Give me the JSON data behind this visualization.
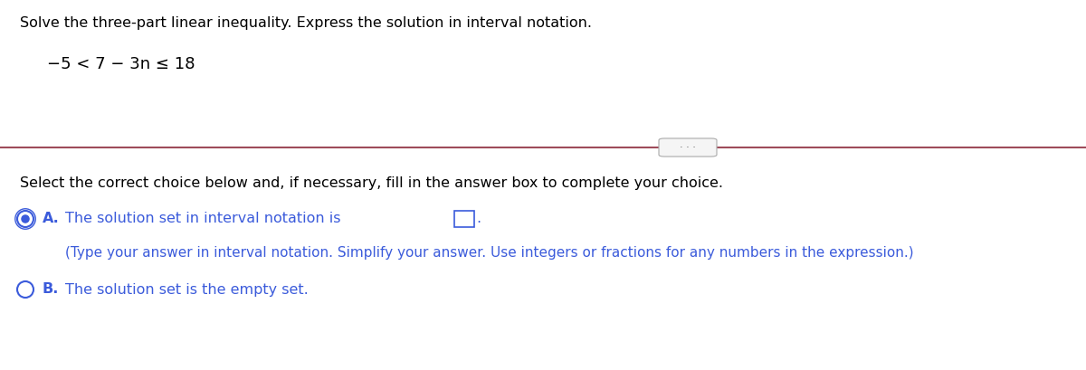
{
  "bg_color": "#ffffff",
  "title_text": "Solve the three-part linear inequality. Express the solution in interval notation.",
  "title_fontsize": 11.5,
  "title_color": "#000000",
  "inequality_text": "−5 < 7 − 3n ≤ 18",
  "inequality_fontsize": 13,
  "inequality_color": "#000000",
  "divider_color": "#9e4b5a",
  "divider_lw": 1.5,
  "select_text": "Select the correct choice below and, if necessary, fill in the answer box to complete your choice.",
  "select_fontsize": 11.5,
  "select_color": "#000000",
  "optA_text": "The solution set in interval notation is",
  "optA_fontsize": 11.5,
  "optA_color": "#3b5bdb",
  "optA_hint_text": "(Type your answer in interval notation. Simplify your answer. Use integers or fractions for any numbers in the expression.)",
  "optA_hint_fontsize": 11.0,
  "optA_hint_color": "#3b5bdb",
  "optB_text": "The solution set is the empty set.",
  "optB_fontsize": 11.5,
  "optB_color": "#3b5bdb"
}
